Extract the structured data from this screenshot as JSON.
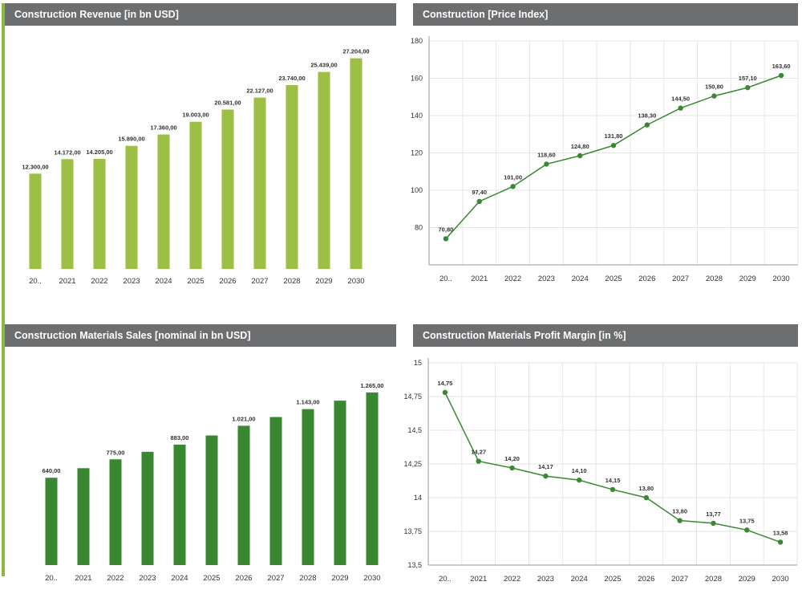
{
  "colors": {
    "accent": "#8db83e",
    "header_bg": "#6d6e70",
    "header_text": "#ffffff",
    "bar_light_green": "#9cbf45",
    "bar_dark_green": "#3a8832",
    "line_green": "#3a8832",
    "grid": "#e6e6e6",
    "label": "#333333"
  },
  "chart_data": [
    {
      "id": "revenue",
      "type": "bar",
      "title": "Construction Revenue [in bn USD]",
      "categories": [
        "20..",
        "2021",
        "2022",
        "2023",
        "2024",
        "2025",
        "2026",
        "2027",
        "2028",
        "2029",
        "2030"
      ],
      "values": [
        12300,
        14172,
        14205,
        15890,
        17360,
        19003,
        20581,
        22127,
        23740,
        25439,
        27204
      ],
      "data_labels": [
        "12.300,00",
        "14.172,00",
        "14.205,00",
        "15.890,00",
        "17.360,00",
        "19.003,00",
        "20.581,00",
        "22.127,00",
        "23.740,00",
        "25.439,00",
        "27.204,00"
      ],
      "ylim": [
        0,
        31000
      ],
      "grid": false,
      "color": "#9cbf45"
    },
    {
      "id": "price",
      "type": "line",
      "title": "Construction [Price Index]",
      "categories": [
        "20..",
        "2021",
        "2022",
        "2023",
        "2024",
        "2025",
        "2026",
        "2027",
        "2028",
        "2029",
        "2030"
      ],
      "values": [
        70.8,
        97.4,
        101.0,
        118.6,
        124.8,
        131.8,
        138.3,
        144.5,
        150.8,
        157.1,
        163.6
      ],
      "plotted_values": [
        74,
        94,
        102,
        114,
        118.5,
        124,
        135,
        144,
        150.5,
        155,
        161.5
      ],
      "data_labels": [
        "70,80",
        "97,40",
        "101,00",
        "118,60",
        "124,80",
        "131,80",
        "138,30",
        "144,50",
        "150,80",
        "157,10",
        "163,60"
      ],
      "yticks": [
        "80",
        "100",
        "120",
        "140",
        "160",
        "180"
      ],
      "ylim": [
        60,
        180
      ],
      "grid": true,
      "color": "#3a8832"
    },
    {
      "id": "materials",
      "type": "bar",
      "title": "Construction Materials Sales [nominal in bn USD]",
      "categories": [
        "20..",
        "2021",
        "2022",
        "2023",
        "2024",
        "2025",
        "2026",
        "2027",
        "2028",
        "2029",
        "2030"
      ],
      "values": [
        640,
        710,
        775,
        830,
        883,
        950,
        1021,
        1085,
        1143,
        1205,
        1265
      ],
      "data_labels": [
        "640,00",
        "",
        "775,00",
        "",
        "883,00",
        "",
        "1.021,00",
        "",
        "1.143,00",
        "",
        "1.265,00"
      ],
      "ylim": [
        0,
        1600
      ],
      "grid": false,
      "color": "#3a8832"
    },
    {
      "id": "margin",
      "type": "line",
      "title": "Construction Materials Profit Margin [in %]",
      "categories": [
        "20..",
        "2021",
        "2022",
        "2023",
        "2024",
        "2025",
        "2026",
        "2027",
        "2028",
        "2029",
        "2030"
      ],
      "values": [
        14.75,
        14.27,
        14.2,
        14.17,
        14.1,
        14.15,
        13.8,
        13.8,
        13.77,
        13.75,
        13.58
      ],
      "plotted_values": [
        14.78,
        14.27,
        14.22,
        14.16,
        14.13,
        14.06,
        14.0,
        13.83,
        13.81,
        13.76,
        13.67
      ],
      "data_labels": [
        "14,75",
        "14,27",
        "14,20",
        "14,17",
        "14,10",
        "14,15",
        "13,80",
        "13,80",
        "13,77",
        "13,75",
        "13,58"
      ],
      "yticks": [
        "13,5",
        "13,75",
        "14",
        "14,25",
        "14,5",
        "14,75",
        "15"
      ],
      "ylim": [
        13.5,
        15
      ],
      "grid": true,
      "color": "#3a8832"
    }
  ]
}
